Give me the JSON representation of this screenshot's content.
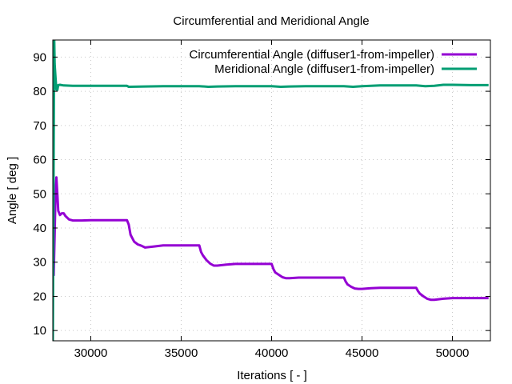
{
  "chart_data": {
    "type": "line",
    "title": "Circumferential and Meridional Angle",
    "xlabel": "Iterations [ - ]",
    "ylabel": "Angle [ deg ]",
    "xlim": [
      27900,
      52100
    ],
    "ylim": [
      7,
      95
    ],
    "xticks": [
      30000,
      35000,
      40000,
      45000,
      50000
    ],
    "yticks": [
      10,
      20,
      30,
      40,
      50,
      60,
      70,
      80,
      90
    ],
    "grid": true,
    "legend_position": "top-right",
    "series": [
      {
        "name": "Circumferential Angle (diffuser1-from-impeller)",
        "color": "#9400d3",
        "x": [
          27950,
          28000,
          28050,
          28100,
          28150,
          28200,
          28300,
          28400,
          28500,
          28600,
          28800,
          29000,
          29500,
          30000,
          31000,
          32000,
          32100,
          32200,
          32400,
          32600,
          32800,
          33000,
          33500,
          34000,
          35000,
          36000,
          36100,
          36200,
          36400,
          36600,
          36800,
          37000,
          37500,
          38000,
          39000,
          40000,
          40100,
          40200,
          40400,
          40600,
          40800,
          41000,
          41500,
          42000,
          43000,
          44000,
          44100,
          44200,
          44400,
          44600,
          44800,
          45000,
          45500,
          46000,
          47000,
          48000,
          48100,
          48200,
          48400,
          48600,
          48800,
          49000,
          49500,
          50000,
          51000,
          52000
        ],
        "y": [
          26,
          38,
          50,
          54.8,
          50,
          45,
          43.8,
          44.3,
          44.3,
          43.5,
          42.5,
          42.2,
          42.2,
          42.3,
          42.3,
          42.3,
          41,
          38,
          36,
          35.2,
          34.8,
          34.3,
          34.6,
          34.9,
          34.9,
          34.9,
          33,
          32,
          30.6,
          29.6,
          29,
          29,
          29.3,
          29.5,
          29.5,
          29.5,
          28,
          27,
          26.3,
          25.6,
          25.3,
          25.3,
          25.5,
          25.5,
          25.5,
          25.5,
          24.3,
          23.5,
          22.8,
          22.3,
          22.2,
          22.2,
          22.4,
          22.5,
          22.5,
          22.5,
          21.5,
          20.8,
          20,
          19.3,
          19,
          19,
          19.3,
          19.5,
          19.5,
          19.5
        ]
      },
      {
        "name": "Meridional Angle (diffuser1-from-impeller)",
        "color": "#009e73",
        "x": [
          27900,
          27930,
          27960,
          27980,
          28000,
          28050,
          28100,
          28150,
          28200,
          28300,
          28500,
          29000,
          30000,
          31000,
          32000,
          32100,
          33000,
          34000,
          35000,
          36000,
          36500,
          37000,
          38000,
          39000,
          40000,
          40500,
          41000,
          42000,
          43000,
          44000,
          44500,
          45000,
          46000,
          47000,
          48000,
          48500,
          49000,
          49500,
          50000,
          51000,
          52000
        ],
        "y": [
          7,
          40,
          80,
          95,
          88,
          84,
          80.5,
          80.4,
          81.8,
          81.9,
          81.7,
          81.6,
          81.6,
          81.6,
          81.6,
          81.3,
          81.4,
          81.5,
          81.5,
          81.5,
          81.3,
          81.4,
          81.5,
          81.5,
          81.5,
          81.3,
          81.4,
          81.5,
          81.5,
          81.5,
          81.3,
          81.5,
          81.7,
          81.7,
          81.7,
          81.5,
          81.6,
          81.9,
          81.9,
          81.8,
          81.8
        ]
      }
    ]
  }
}
